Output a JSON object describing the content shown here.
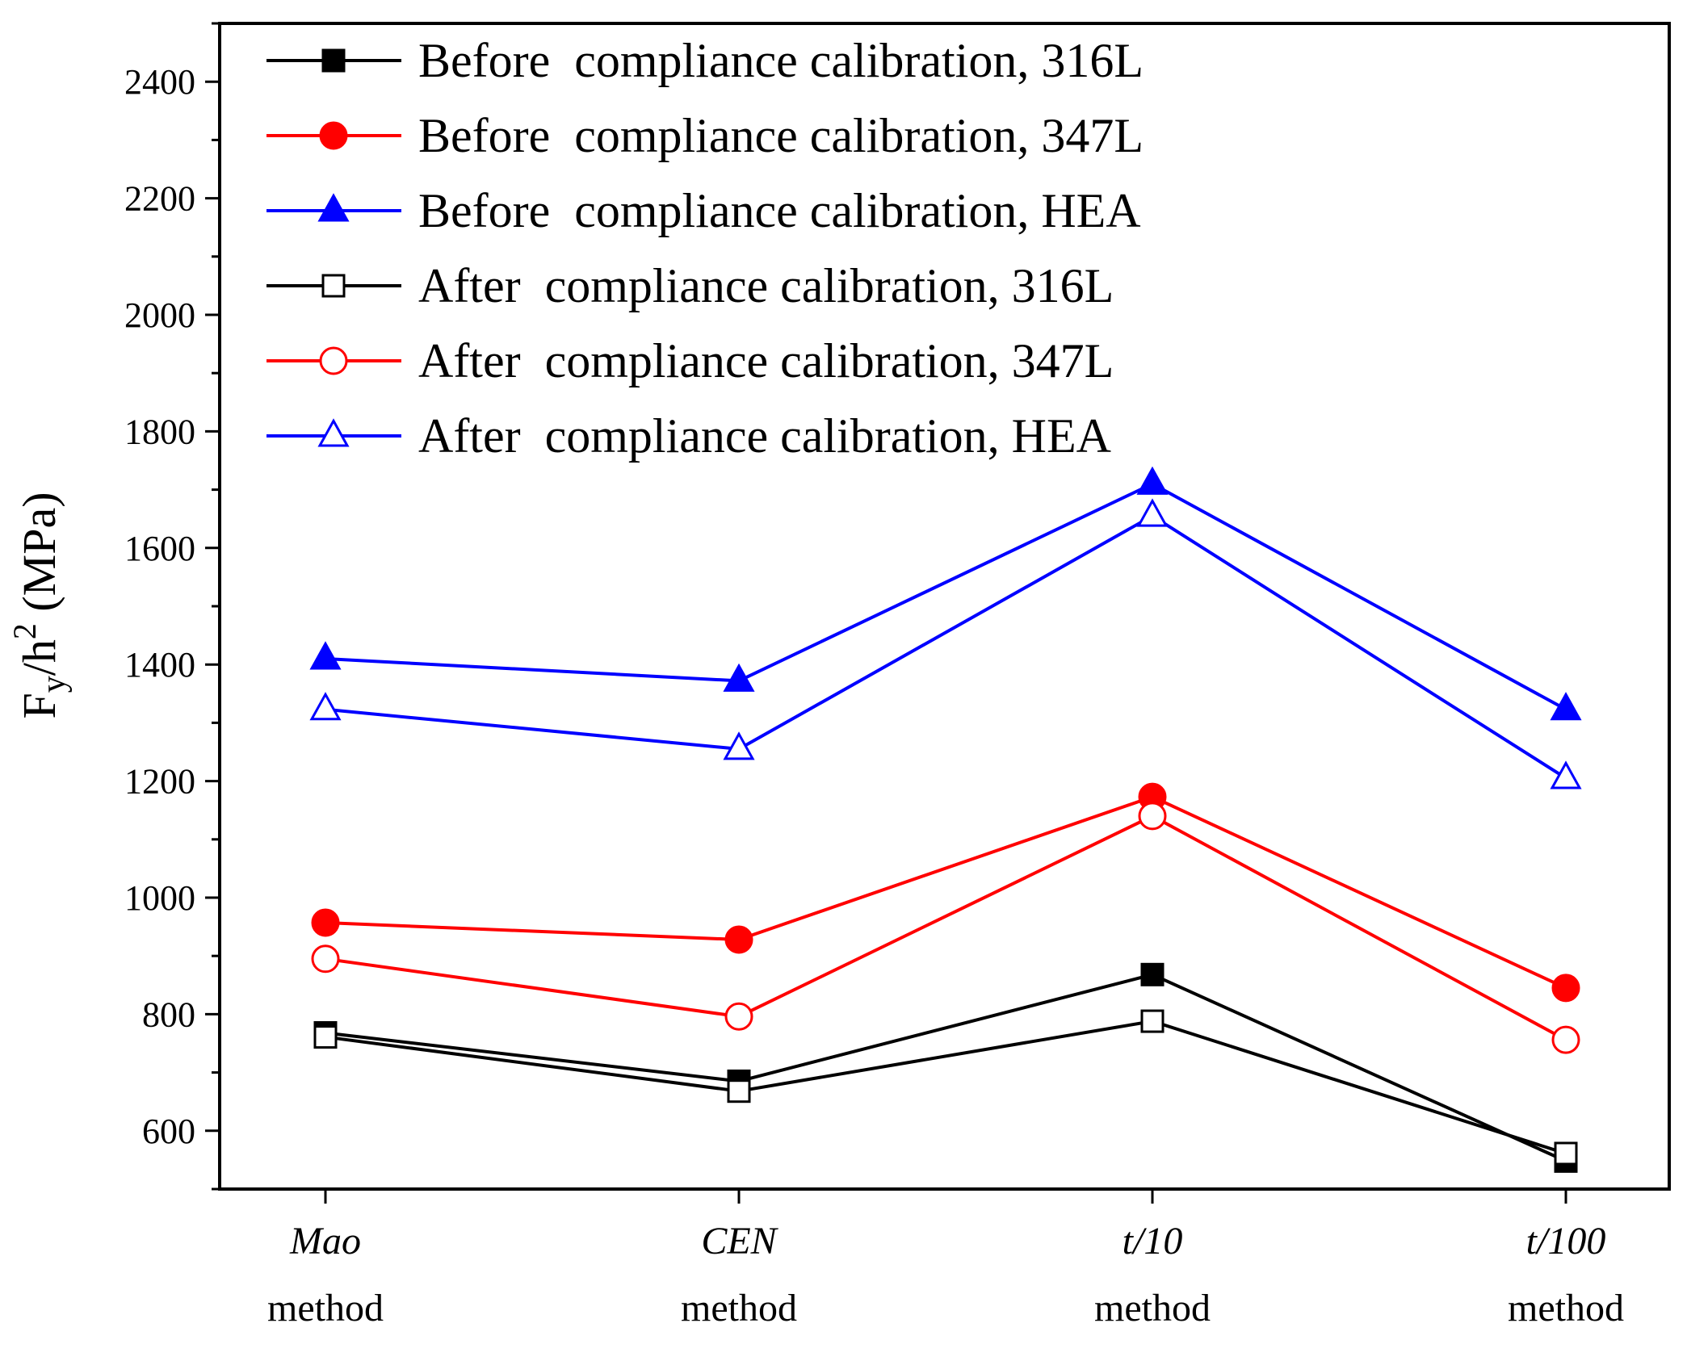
{
  "chart_data": {
    "type": "line",
    "title": "",
    "xlabel": "",
    "ylabel": {
      "base": "F",
      "sub": "y",
      "mid": "/h",
      "sup": "2",
      "unit": " (MPa)"
    },
    "ylim": [
      500,
      2500
    ],
    "yticks": [
      600,
      800,
      1000,
      1200,
      1400,
      1600,
      1800,
      2000,
      2200,
      2400
    ],
    "categories": [
      {
        "name": "Mao",
        "line2": "method"
      },
      {
        "name": "CEN",
        "line2": "method"
      },
      {
        "name": "t/10",
        "line2": "method"
      },
      {
        "name": "t/100",
        "line2": "method"
      }
    ],
    "legend_position": "top-left",
    "series": [
      {
        "name": "Before  compliance calibration, 316L",
        "color": "#000000",
        "marker": "square",
        "filled": true,
        "values": [
          768,
          685,
          868,
          548
        ]
      },
      {
        "name": "Before  compliance calibration, 347L",
        "color": "#ff0000",
        "marker": "circle",
        "filled": true,
        "values": [
          957,
          928,
          1173,
          845
        ]
      },
      {
        "name": "Before  compliance calibration, HEA",
        "color": "#0000ff",
        "marker": "triangle",
        "filled": true,
        "values": [
          1410,
          1372,
          1710,
          1323
        ]
      },
      {
        "name": "After  compliance calibration, 316L",
        "color": "#000000",
        "marker": "square",
        "filled": false,
        "values": [
          761,
          668,
          788,
          561
        ]
      },
      {
        "name": "After  compliance calibration, 347L",
        "color": "#ff0000",
        "marker": "circle",
        "filled": false,
        "values": [
          895,
          796,
          1140,
          756
        ]
      },
      {
        "name": "After  compliance calibration, HEA",
        "color": "#0000ff",
        "marker": "triangle",
        "filled": false,
        "values": [
          1323,
          1255,
          1655,
          1205
        ]
      }
    ]
  }
}
